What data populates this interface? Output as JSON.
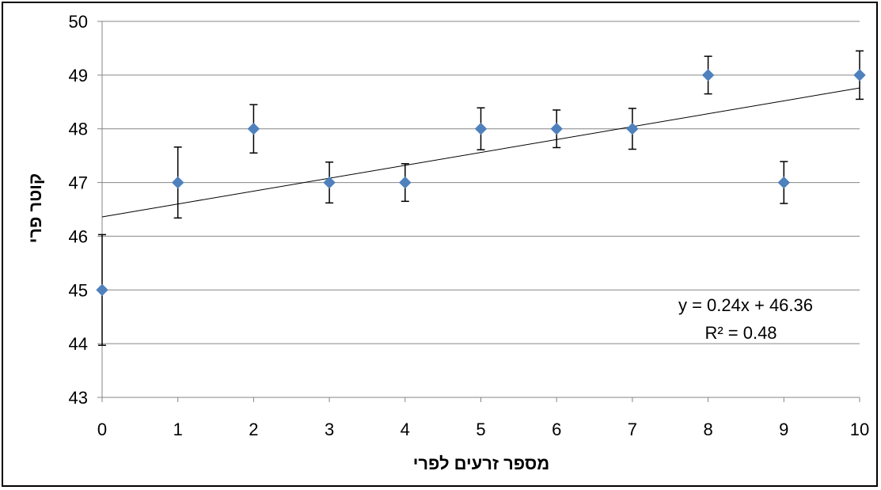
{
  "chart_data": {
    "type": "scatter",
    "title": "",
    "xlabel": "מספר זרעים לפרי",
    "ylabel": "קוטר פרי",
    "xlim": [
      0,
      10
    ],
    "ylim": [
      43,
      50
    ],
    "x_ticks": [
      "0",
      "1",
      "2",
      "3",
      "4",
      "5",
      "6",
      "7",
      "8",
      "9",
      "10"
    ],
    "y_ticks": [
      "43",
      "44",
      "45",
      "46",
      "47",
      "48",
      "49",
      "50"
    ],
    "grid": true,
    "series": [
      {
        "x": [
          0,
          1,
          2,
          3,
          4,
          5,
          6,
          7,
          8,
          9,
          10
        ],
        "y": [
          45,
          47,
          48,
          47,
          47,
          48,
          48,
          48,
          49,
          47,
          49
        ],
        "error": [
          1.03,
          0.66,
          0.45,
          0.38,
          0.35,
          0.39,
          0.35,
          0.38,
          0.35,
          0.39,
          0.45
        ],
        "color": "#4f81bd"
      }
    ],
    "trendline": {
      "slope": 0.24,
      "intercept": 46.36,
      "equation": "y = 0.24x + 46.36",
      "r_squared": "R² = 0.48"
    }
  }
}
